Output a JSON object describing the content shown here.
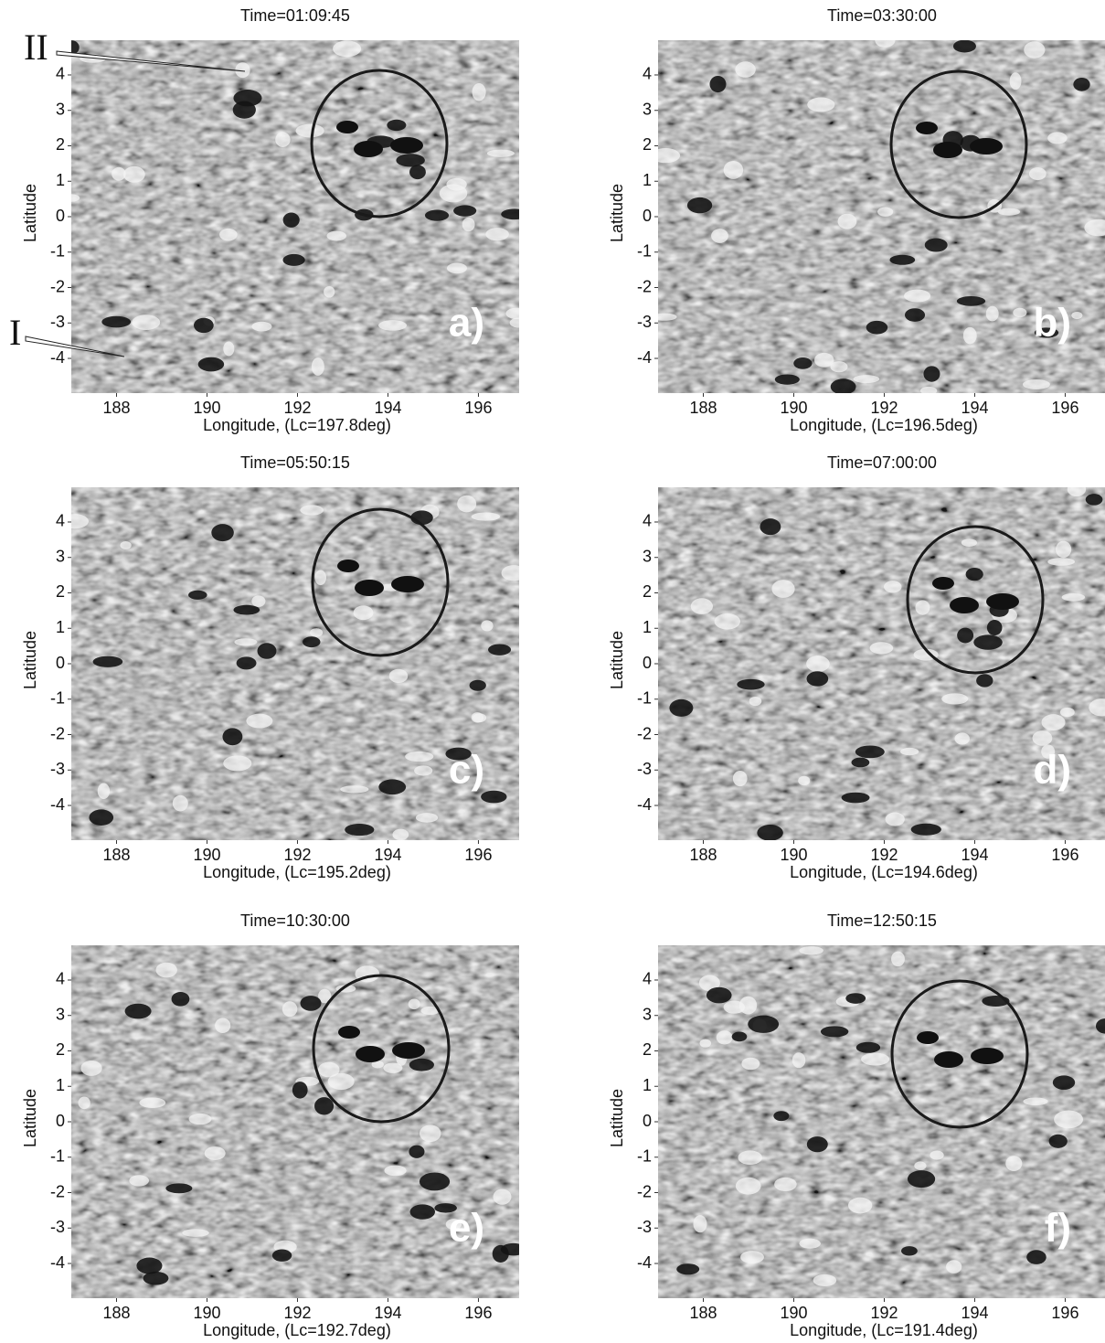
{
  "chart_data": [
    {
      "type": "image",
      "title": "Time=01:09:45",
      "x_label": "Longitude, (Lc=197.8deg)",
      "y_label": "Latitude",
      "xlim": [
        187,
        196.9
      ],
      "ylim": [
        -4.98,
        4.98
      ],
      "xticks": [
        188,
        190,
        192,
        194,
        196
      ],
      "yticks": [
        -4,
        -3,
        -2,
        -1,
        0,
        1,
        2,
        3,
        4
      ],
      "panel_label": "a)",
      "annotations": [
        "II",
        "I"
      ]
    },
    {
      "type": "image",
      "title": "Time=03:30:00",
      "x_label": "Longitude, (Lc=196.5deg)",
      "y_label": "Latitude",
      "xlim": [
        187,
        196.9
      ],
      "ylim": [
        -4.98,
        4.98
      ],
      "xticks": [
        188,
        190,
        192,
        194,
        196
      ],
      "yticks": [
        -4,
        -3,
        -2,
        -1,
        0,
        1,
        2,
        3,
        4
      ],
      "panel_label": "b)"
    },
    {
      "type": "image",
      "title": "Time=05:50:15",
      "x_label": "Longitude, (Lc=195.2deg)",
      "y_label": "Latitude",
      "xlim": [
        187,
        196.9
      ],
      "ylim": [
        -4.98,
        4.98
      ],
      "xticks": [
        188,
        190,
        192,
        194,
        196
      ],
      "yticks": [
        -4,
        -3,
        -2,
        -1,
        0,
        1,
        2,
        3,
        4
      ],
      "panel_label": "c)"
    },
    {
      "type": "image",
      "title": "Time=07:00:00",
      "x_label": "Longitude, (Lc=194.6deg)",
      "y_label": "Latitude",
      "xlim": [
        187,
        196.9
      ],
      "ylim": [
        -4.98,
        4.98
      ],
      "xticks": [
        188,
        190,
        192,
        194,
        196
      ],
      "yticks": [
        -4,
        -3,
        -2,
        -1,
        0,
        1,
        2,
        3,
        4
      ],
      "panel_label": "d)"
    },
    {
      "type": "image",
      "title": "Time=10:30:00",
      "x_label": "Longitude, (Lc=192.7deg)",
      "y_label": "Latitude",
      "xlim": [
        187,
        196.9
      ],
      "ylim": [
        -4.98,
        4.98
      ],
      "xticks": [
        188,
        190,
        192,
        194,
        196
      ],
      "yticks": [
        -4,
        -3,
        -2,
        -1,
        0,
        1,
        2,
        3,
        4
      ],
      "panel_label": "e)"
    },
    {
      "type": "image",
      "title": "Time=12:50:15",
      "x_label": "Longitude, (Lc=191.4deg)",
      "y_label": "Latitude",
      "xlim": [
        187,
        196.9
      ],
      "ylim": [
        -4.98,
        4.98
      ],
      "xticks": [
        188,
        190,
        192,
        194,
        196
      ],
      "yticks": [
        -4,
        -3,
        -2,
        -1,
        0,
        1,
        2,
        3,
        4
      ],
      "panel_label": "f)"
    }
  ]
}
